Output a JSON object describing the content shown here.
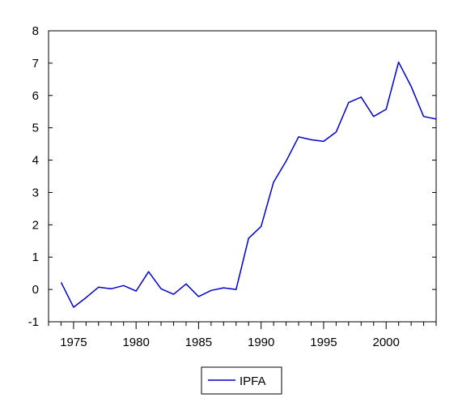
{
  "chart_data": {
    "type": "line",
    "title": "",
    "xlabel": "",
    "ylabel": "",
    "xlim": [
      1973,
      2004
    ],
    "ylim": [
      -1,
      8
    ],
    "x_ticks": [
      "1975",
      "1980",
      "1985",
      "1990",
      "1995",
      "2000"
    ],
    "y_ticks": [
      "8",
      "7",
      "6",
      "5",
      "4",
      "3",
      "2",
      "1",
      "0",
      "-1"
    ],
    "legend_position": "bottom-center",
    "grid": false,
    "series": [
      {
        "name": "IPFA",
        "color": "#0000cc",
        "x": [
          1974,
          1975,
          1976,
          1977,
          1978,
          1979,
          1980,
          1981,
          1982,
          1983,
          1984,
          1985,
          1986,
          1987,
          1988,
          1989,
          1990,
          1991,
          1992,
          1993,
          1994,
          1995,
          1996,
          1997,
          1998,
          1999,
          2000,
          2001,
          2002,
          2003,
          2004
        ],
        "y": [
          0.22,
          -0.55,
          -0.25,
          0.07,
          0.02,
          0.12,
          -0.05,
          0.55,
          0.02,
          -0.15,
          0.17,
          -0.22,
          -0.03,
          0.05,
          0.0,
          1.58,
          1.95,
          3.32,
          3.97,
          4.72,
          4.63,
          4.58,
          4.87,
          5.78,
          5.95,
          5.35,
          5.57,
          7.03,
          6.28,
          5.35,
          5.27
        ]
      }
    ]
  }
}
